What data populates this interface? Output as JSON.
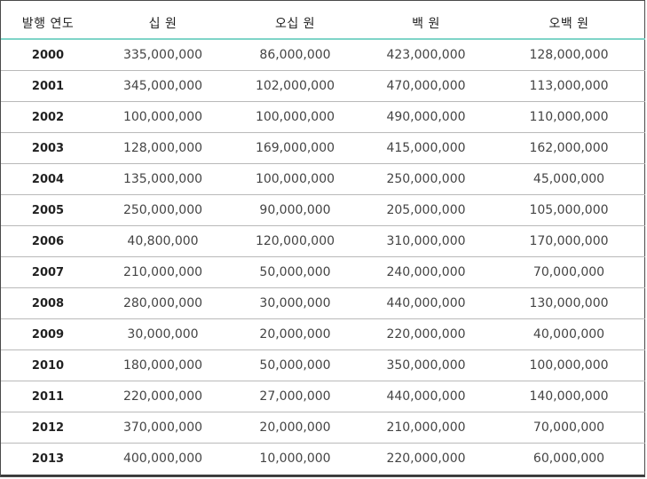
{
  "table": {
    "headers": [
      "발행 연도",
      "십 원",
      "오십 원",
      "백 원",
      "오백 원"
    ],
    "rows": [
      [
        "2000",
        "335,000,000",
        "86,000,000",
        "423,000,000",
        "128,000,000"
      ],
      [
        "2001",
        "345,000,000",
        "102,000,000",
        "470,000,000",
        "113,000,000"
      ],
      [
        "2002",
        "100,000,000",
        "100,000,000",
        "490,000,000",
        "110,000,000"
      ],
      [
        "2003",
        "128,000,000",
        "169,000,000",
        "415,000,000",
        "162,000,000"
      ],
      [
        "2004",
        "135,000,000",
        "100,000,000",
        "250,000,000",
        "45,000,000"
      ],
      [
        "2005",
        "250,000,000",
        "90,000,000",
        "205,000,000",
        "105,000,000"
      ],
      [
        "2006",
        "40,800,000",
        "120,000,000",
        "310,000,000",
        "170,000,000"
      ],
      [
        "2007",
        "210,000,000",
        "50,000,000",
        "240,000,000",
        "70,000,000"
      ],
      [
        "2008",
        "280,000,000",
        "30,000,000",
        "440,000,000",
        "130,000,000"
      ],
      [
        "2009",
        "30,000,000",
        "20,000,000",
        "220,000,000",
        "40,000,000"
      ],
      [
        "2010",
        "180,000,000",
        "50,000,000",
        "350,000,000",
        "100,000,000"
      ],
      [
        "2011",
        "220,000,000",
        "27,000,000",
        "440,000,000",
        "140,000,000"
      ],
      [
        "2012",
        "370,000,000",
        "20,000,000",
        "210,000,000",
        "70,000,000"
      ],
      [
        "2013",
        "400,000,000",
        "10,000,000",
        "220,000,000",
        "60,000,000"
      ]
    ]
  }
}
